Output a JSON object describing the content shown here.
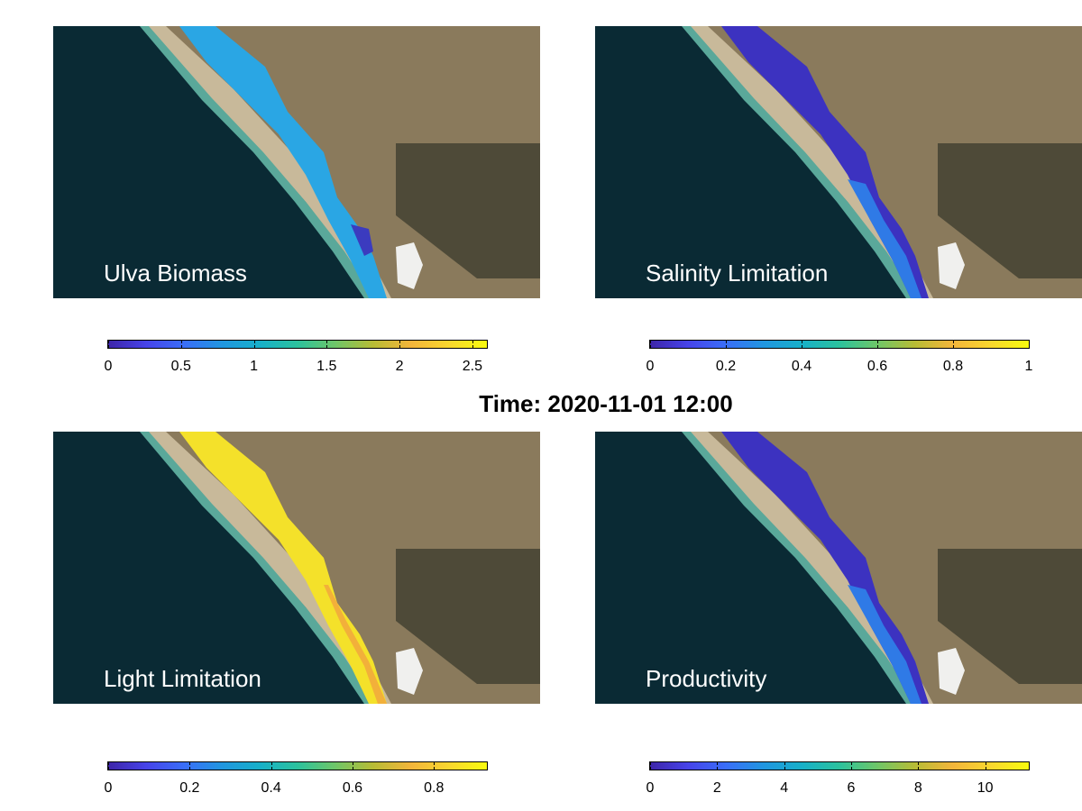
{
  "figure": {
    "time_title": "Time: 2020-11-01 12:00"
  },
  "panels": [
    {
      "title": "Ulva Biomass",
      "overlay_color_main": "#2aa6e4",
      "overlay_color_edge": "#3b3bbf",
      "colorbar": {
        "min": 0,
        "max": 2.6,
        "ticks": [
          "0",
          "0.5",
          "1",
          "1.5",
          "2",
          "2.5"
        ],
        "tick_values": [
          0,
          0.5,
          1,
          1.5,
          2,
          2.5
        ]
      }
    },
    {
      "title": "Salinity Limitation",
      "overlay_color_main": "#3c32c0",
      "overlay_color_edge": "#2f7ae6",
      "colorbar": {
        "min": 0,
        "max": 1,
        "ticks": [
          "0",
          "0.2",
          "0.4",
          "0.6",
          "0.8",
          "1"
        ],
        "tick_values": [
          0,
          0.2,
          0.4,
          0.6,
          0.8,
          1
        ]
      }
    },
    {
      "title": "Light Limitation",
      "overlay_color_main": "#f4e12a",
      "overlay_color_edge": "#f2b03a",
      "colorbar": {
        "min": 0,
        "max": 0.93,
        "ticks": [
          "0",
          "0.2",
          "0.4",
          "0.6",
          "0.8"
        ],
        "tick_values": [
          0,
          0.2,
          0.4,
          0.6,
          0.8
        ]
      }
    },
    {
      "title": "Productivity",
      "overlay_color_main": "#3c32c0",
      "overlay_color_edge": "#2f7ae6",
      "colorbar": {
        "min": 0,
        "max": 11.3,
        "ticks": [
          "0",
          "2",
          "4",
          "6",
          "8",
          "10"
        ],
        "tick_values": [
          0,
          2,
          4,
          6,
          8,
          10
        ]
      }
    }
  ],
  "colormap": [
    "#3e26a8",
    "#4743e9",
    "#3a6ef8",
    "#2196e0",
    "#17b0c9",
    "#2cc29d",
    "#6fc668",
    "#b8bc35",
    "#f3b53b",
    "#f9d72e",
    "#f9fb0e"
  ]
}
